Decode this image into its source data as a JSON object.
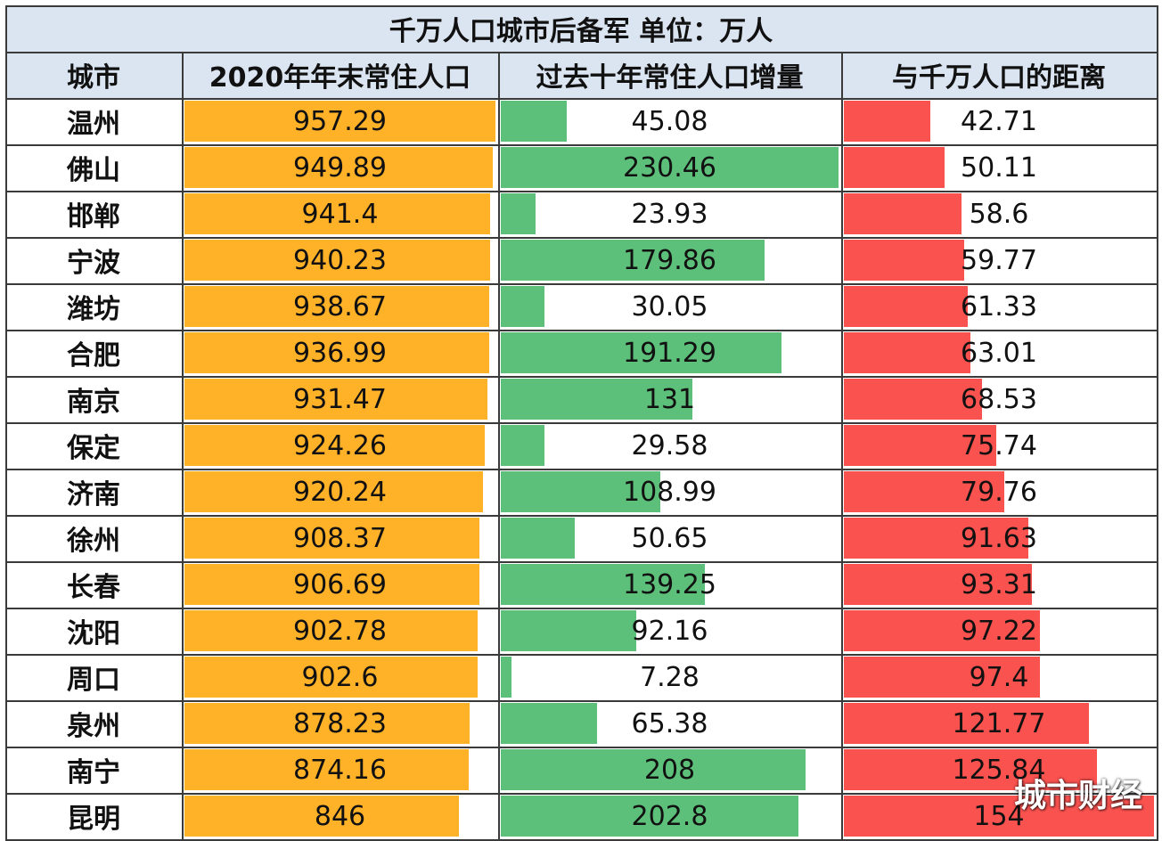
{
  "title": "千万人口城市后备军  单位：万人",
  "watermark": "城市财经",
  "colors": {
    "header_bg": "#dbe5f1",
    "population_bar": "#ffb128",
    "increase_bar": "#5cbf7a",
    "distance_bar": "#f9524f",
    "grid": "#3a3a3a"
  },
  "chart_data": {
    "type": "table",
    "title": "千万人口城市后备军  单位：万人",
    "columns": [
      "城市",
      "2020年年末常住人口",
      "过去十年常住人口增量",
      "与千万人口的距离"
    ],
    "categories": [
      "温州",
      "佛山",
      "邯郸",
      "宁波",
      "潍坊",
      "合肥",
      "南京",
      "保定",
      "济南",
      "徐州",
      "长春",
      "沈阳",
      "周口",
      "泉州",
      "南宁",
      "昆明"
    ],
    "series": [
      {
        "name": "2020年年末常住人口",
        "values": [
          957.29,
          949.89,
          941.4,
          940.23,
          938.67,
          936.99,
          931.47,
          924.26,
          920.24,
          908.37,
          906.69,
          902.78,
          902.6,
          878.23,
          874.16,
          846
        ]
      },
      {
        "name": "过去十年常住人口增量",
        "values": [
          45.08,
          230.46,
          23.93,
          179.86,
          30.05,
          191.29,
          131,
          29.58,
          108.99,
          50.65,
          139.25,
          92.16,
          7.28,
          65.38,
          208,
          202.8
        ]
      },
      {
        "name": "与千万人口的距离",
        "values": [
          42.71,
          50.11,
          58.6,
          59.77,
          61.33,
          63.01,
          68.53,
          75.74,
          79.76,
          91.63,
          93.31,
          97.22,
          97.4,
          121.77,
          125.84,
          154
        ]
      }
    ],
    "labels": [
      [
        "957.29",
        "949.89",
        "941.4",
        "940.23",
        "938.67",
        "936.99",
        "931.47",
        "924.26",
        "920.24",
        "908.37",
        "906.69",
        "902.78",
        "902.6",
        "878.23",
        "874.16",
        "846"
      ],
      [
        "45.08",
        "230.46",
        "23.93",
        "179.86",
        "30.05",
        "191.29",
        "131",
        "29.58",
        "108.99",
        "50.65",
        "139.25",
        "92.16",
        "7.28",
        "65.38",
        "208",
        "202.8"
      ],
      [
        "42.71",
        "50.11",
        "58.6",
        "59.77",
        "61.33",
        "63.01",
        "68.53",
        "75.74",
        "79.76",
        "91.63",
        "93.31",
        "97.22",
        "97.4",
        "121.77",
        "125.84",
        "154"
      ]
    ],
    "bar_scale_max": [
      957.29,
      230.46,
      154
    ]
  }
}
